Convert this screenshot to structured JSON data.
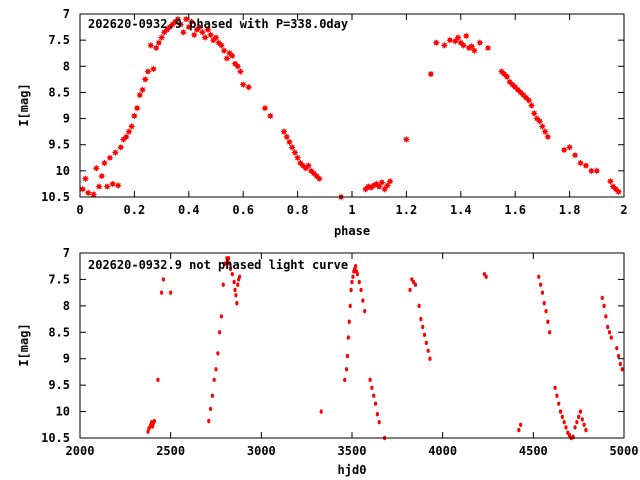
{
  "chart_data": [
    {
      "type": "scatter",
      "title": "202620-0932.9 phased with P=338.0day",
      "xlabel": "phase",
      "ylabel": "I[mag]",
      "xlim": [
        0,
        2
      ],
      "ylim": [
        10.5,
        7
      ],
      "y_inverted": true,
      "grid": false,
      "marker_color": "#ff0000",
      "marker": "star",
      "xticks": [
        "0",
        "0.2",
        "0.4",
        "0.6",
        "0.8",
        "1",
        "1.2",
        "1.4",
        "1.6",
        "1.8",
        "2"
      ],
      "yticks": [
        "7",
        "7.5",
        "8",
        "8.5",
        "9",
        "9.5",
        "10",
        "10.5"
      ],
      "series": [
        {
          "x": [
            0.01,
            0.02,
            0.03,
            0.05,
            0.06,
            0.07,
            0.08,
            0.09,
            0.1,
            0.11,
            0.12,
            0.13,
            0.14,
            0.15,
            0.16,
            0.17,
            0.18,
            0.19,
            0.2,
            0.21,
            0.22,
            0.23,
            0.24,
            0.25,
            0.26,
            0.27,
            0.28,
            0.29,
            0.3,
            0.31,
            0.32,
            0.33,
            0.34,
            0.35,
            0.36,
            0.37,
            0.38,
            0.39,
            0.4,
            0.41,
            0.42,
            0.43,
            0.44,
            0.45,
            0.46,
            0.47,
            0.48,
            0.49,
            0.5,
            0.51,
            0.52,
            0.53,
            0.54,
            0.55,
            0.56,
            0.57,
            0.58,
            0.59,
            0.6,
            0.62,
            0.68,
            0.7,
            0.75,
            0.76,
            0.77,
            0.78,
            0.79,
            0.8,
            0.81,
            0.82,
            0.83,
            0.84,
            0.85,
            0.86,
            0.87,
            0.88,
            0.96,
            1.05,
            1.06,
            1.07,
            1.08,
            1.09,
            1.1,
            1.11,
            1.12,
            1.13,
            1.14,
            1.2,
            1.29,
            1.31,
            1.34,
            1.36,
            1.38,
            1.39,
            1.4,
            1.41,
            1.42,
            1.43,
            1.44,
            1.45,
            1.47,
            1.5,
            1.55,
            1.56,
            1.57,
            1.58,
            1.59,
            1.6,
            1.61,
            1.62,
            1.63,
            1.64,
            1.65,
            1.66,
            1.67,
            1.68,
            1.69,
            1.7,
            1.71,
            1.72,
            1.78,
            1.8,
            1.82,
            1.84,
            1.86,
            1.88,
            1.9,
            1.95,
            1.96,
            1.97,
            1.98
          ],
          "y": [
            10.35,
            10.15,
            10.42,
            10.45,
            9.95,
            10.3,
            10.1,
            9.85,
            10.3,
            9.75,
            10.25,
            9.65,
            10.28,
            9.55,
            9.4,
            9.35,
            9.25,
            9.15,
            8.95,
            8.8,
            8.55,
            8.45,
            8.25,
            8.1,
            7.6,
            8.05,
            7.65,
            7.55,
            7.45,
            7.35,
            7.3,
            7.25,
            7.2,
            7.15,
            7.1,
            7.2,
            7.35,
            7.1,
            7.25,
            7.15,
            7.4,
            7.3,
            7.25,
            7.35,
            7.45,
            7.3,
            7.4,
            7.5,
            7.45,
            7.55,
            7.6,
            7.7,
            7.85,
            7.75,
            7.8,
            7.95,
            8.0,
            8.1,
            8.35,
            8.4,
            8.8,
            8.95,
            9.25,
            9.35,
            9.45,
            9.55,
            9.65,
            9.75,
            9.85,
            9.9,
            9.95,
            9.9,
            10.0,
            10.05,
            10.1,
            10.15,
            10.5,
            10.35,
            10.3,
            10.32,
            10.28,
            10.25,
            10.3,
            10.22,
            10.35,
            10.28,
            10.2,
            9.4,
            8.15,
            7.55,
            7.6,
            7.5,
            7.52,
            7.45,
            7.55,
            7.6,
            7.42,
            7.65,
            7.62,
            7.7,
            7.55,
            7.65,
            8.1,
            8.15,
            8.2,
            8.3,
            8.35,
            8.4,
            8.45,
            8.5,
            8.55,
            8.6,
            8.65,
            8.75,
            8.9,
            9.0,
            9.05,
            9.15,
            9.25,
            9.35,
            9.6,
            9.55,
            9.7,
            9.85,
            9.9,
            10.0,
            10.0,
            10.2,
            10.3,
            10.35,
            10.4
          ]
        }
      ]
    },
    {
      "type": "scatter",
      "title": "202620-0932.9 not phased light curve",
      "xlabel": "hjd0",
      "ylabel": "I[mag]",
      "xlim": [
        2000,
        5000
      ],
      "ylim": [
        10.5,
        7
      ],
      "y_inverted": true,
      "grid": false,
      "marker_color": "#ff0000",
      "marker": "dot",
      "xticks": [
        "2000",
        "2500",
        "3000",
        "3500",
        "4000",
        "4500",
        "5000"
      ],
      "yticks": [
        "7",
        "7.5",
        "8",
        "8.5",
        "9",
        "9.5",
        "10",
        "10.5"
      ],
      "series": [
        {
          "x": [
            2375,
            2380,
            2385,
            2390,
            2395,
            2400,
            2405,
            2410,
            2430,
            2450,
            2460,
            2500,
            2710,
            2720,
            2730,
            2740,
            2750,
            2760,
            2770,
            2780,
            2790,
            2800,
            2810,
            2815,
            2820,
            2825,
            2830,
            2840,
            2850,
            2855,
            2860,
            2865,
            2870,
            2875,
            2880,
            3330,
            3460,
            3470,
            3475,
            3480,
            3485,
            3490,
            3495,
            3500,
            3505,
            3510,
            3515,
            3520,
            3525,
            3530,
            3540,
            3550,
            3560,
            3570,
            3600,
            3610,
            3620,
            3630,
            3640,
            3650,
            3680,
            3820,
            3830,
            3840,
            3850,
            3870,
            3880,
            3890,
            3900,
            3910,
            3920,
            3930,
            4230,
            4240,
            4420,
            4430,
            4530,
            4540,
            4550,
            4560,
            4570,
            4580,
            4590,
            4620,
            4630,
            4640,
            4650,
            4660,
            4670,
            4680,
            4690,
            4700,
            4710,
            4720,
            4730,
            4740,
            4750,
            4760,
            4770,
            4780,
            4790,
            4880,
            4890,
            4900,
            4910,
            4920,
            4930,
            4960,
            4970,
            4980,
            4990
          ],
          "y": [
            10.38,
            10.32,
            10.3,
            10.25,
            10.2,
            10.28,
            10.22,
            10.18,
            9.4,
            7.75,
            7.5,
            7.75,
            10.18,
            9.95,
            9.7,
            9.4,
            9.2,
            8.9,
            8.5,
            8.2,
            7.6,
            7.2,
            7.1,
            7.15,
            7.1,
            7.2,
            7.3,
            7.4,
            7.55,
            7.7,
            7.8,
            7.95,
            7.6,
            7.5,
            7.45,
            10.0,
            9.4,
            9.2,
            8.95,
            8.6,
            8.3,
            8.0,
            7.7,
            7.55,
            7.45,
            7.35,
            7.3,
            7.25,
            7.35,
            7.4,
            7.55,
            7.7,
            7.9,
            8.1,
            9.4,
            9.55,
            9.7,
            9.85,
            10.05,
            10.2,
            10.5,
            7.7,
            7.5,
            7.55,
            7.6,
            8.0,
            8.25,
            8.4,
            8.55,
            8.7,
            8.85,
            9.0,
            7.4,
            7.45,
            10.35,
            10.25,
            7.45,
            7.6,
            7.75,
            7.95,
            8.1,
            8.3,
            8.5,
            9.55,
            9.7,
            9.85,
            10.0,
            10.1,
            10.2,
            10.3,
            10.4,
            10.45,
            10.5,
            10.48,
            10.3,
            10.2,
            10.1,
            10.0,
            10.15,
            10.25,
            10.35,
            7.85,
            8.0,
            8.2,
            8.4,
            8.5,
            8.6,
            8.8,
            8.95,
            9.1,
            9.2
          ]
        }
      ]
    }
  ]
}
